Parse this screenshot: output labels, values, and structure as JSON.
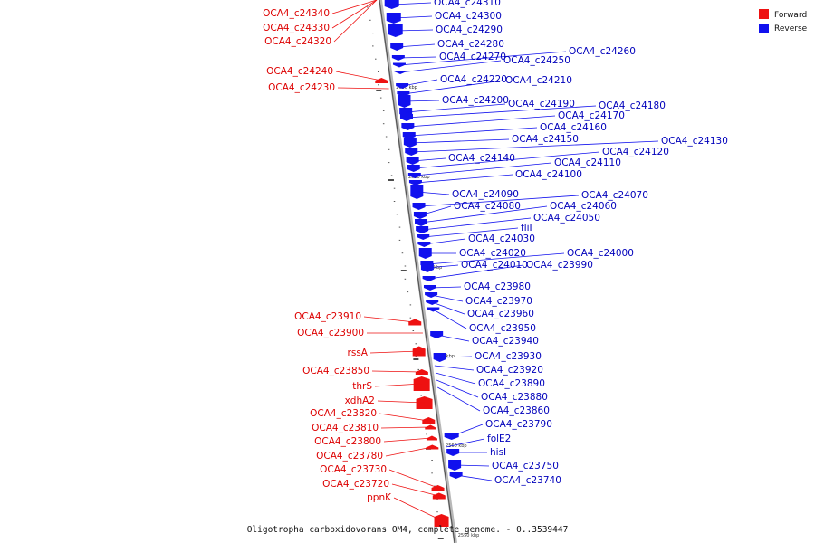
{
  "caption": "Oligotropha carboxidovorans OM4, complete genome. - 0..3539447",
  "legend": {
    "forward": {
      "label": "Forward",
      "color": "#ee1111"
    },
    "reverse": {
      "label": "Reverse",
      "color": "#1111ee"
    }
  },
  "ticks": [
    "2600 kbp",
    "2590 kbp",
    "2580 kbp",
    "2570 kbp",
    "2560 kbp",
    "2550 kbp"
  ],
  "forward_genes": [
    "OCA4_c24340",
    "OCA4_c24330",
    "OCA4_c24320",
    "OCA4_c24240",
    "OCA4_c24230",
    "OCA4_c23910",
    "OCA4_c23900",
    "rssA",
    "OCA4_c23850",
    "thrS",
    "xdhA2",
    "OCA4_c23820",
    "OCA4_c23810",
    "OCA4_c23800",
    "OCA4_c23780",
    "OCA4_c23730",
    "OCA4_c23720",
    "ppnK"
  ],
  "reverse_genes": [
    "OCA4_c24310",
    "OCA4_c24300",
    "OCA4_c24290",
    "OCA4_c24280",
    "OCA4_c24270",
    "OCA4_c24260",
    "OCA4_c24250",
    "OCA4_c24220",
    "OCA4_c24210",
    "OCA4_c24200",
    "OCA4_c24190",
    "OCA4_c24180",
    "OCA4_c24170",
    "OCA4_c24160",
    "OCA4_c24150",
    "OCA4_c24130",
    "OCA4_c24140",
    "OCA4_c24120",
    "OCA4_c24110",
    "OCA4_c24100",
    "OCA4_c24090",
    "OCA4_c24070",
    "OCA4_c24080",
    "OCA4_c24060",
    "OCA4_c24050",
    "fliI",
    "OCA4_c24030",
    "OCA4_c24020",
    "OCA4_c24000",
    "OCA4_c24010",
    "OCA4_c23990",
    "OCA4_c23980",
    "OCA4_c23970",
    "OCA4_c23960",
    "OCA4_c23950",
    "OCA4_c23940",
    "OCA4_c23930",
    "OCA4_c23920",
    "OCA4_c23890",
    "OCA4_c23880",
    "OCA4_c23860",
    "OCA4_c23790",
    "folE2",
    "hisI",
    "OCA4_c23750",
    "OCA4_c23740"
  ]
}
